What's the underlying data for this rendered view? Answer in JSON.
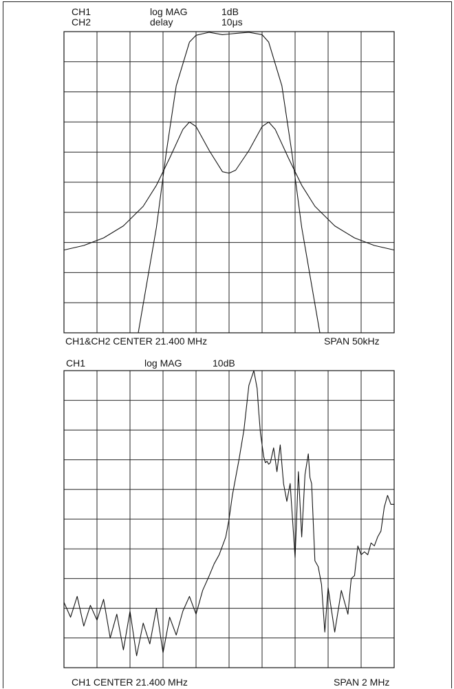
{
  "chart_data": [
    {
      "type": "line",
      "header": {
        "row1": {
          "channel": "CH1",
          "format": "log MAG",
          "scale": "1dB"
        },
        "row2": {
          "channel": "CH2",
          "format": "delay",
          "scale": "10μs"
        }
      },
      "footer": {
        "center": "CH1&CH2 CENTER 21.400 MHz",
        "span": "SPAN 50kHz"
      },
      "grid": true,
      "x_divisions": 10,
      "y_divisions": 10,
      "x_unit": "kHz offset from center",
      "xlim": [
        -25,
        25
      ],
      "series": [
        {
          "id": "ch1_log_mag",
          "unit": "dB below top graticule",
          "ylim": [
            0,
            10
          ],
          "x": [
            -13.75,
            -11,
            -9.5,
            -8,
            -6,
            -5,
            -3,
            -1,
            0,
            1,
            3,
            5,
            6,
            8,
            9.5,
            11,
            13.75
          ],
          "y": [
            10,
            6.5,
            4,
            1.8,
            0.35,
            0.12,
            0.02,
            0.1,
            0.08,
            0.06,
            0.02,
            0.1,
            0.35,
            1.8,
            4,
            6.5,
            10
          ]
        },
        {
          "id": "ch2_delay",
          "unit": "graticule divisions from top",
          "ylim": [
            0,
            10
          ],
          "x": [
            -25,
            -22,
            -19,
            -16,
            -13,
            -11,
            -9,
            -7,
            -6,
            -5,
            -3,
            -1,
            0,
            1,
            3,
            5,
            6,
            7,
            9,
            11,
            13,
            16,
            19,
            22,
            25
          ],
          "y": [
            7.25,
            7.1,
            6.85,
            6.45,
            5.8,
            5.1,
            4.2,
            3.25,
            3.0,
            3.15,
            3.95,
            4.65,
            4.7,
            4.6,
            3.95,
            3.15,
            3.0,
            3.25,
            4.2,
            5.1,
            5.8,
            6.45,
            6.85,
            7.1,
            7.25
          ]
        }
      ]
    },
    {
      "type": "line",
      "header": {
        "channel": "CH1",
        "format": "log MAG",
        "scale": "10dB"
      },
      "footer": {
        "center": "CH1 CENTER 21.400 MHz",
        "span": "SPAN 2 MHz"
      },
      "grid": true,
      "x_divisions": 10,
      "y_divisions": 10,
      "x_unit": "MHz offset from center",
      "xlim": [
        -1,
        1
      ],
      "series": [
        {
          "id": "ch1_log_mag_wide",
          "unit": "graticule divisions from top",
          "ylim": [
            0,
            10
          ],
          "x": [
            -1.0,
            -0.96,
            -0.92,
            -0.88,
            -0.84,
            -0.8,
            -0.76,
            -0.72,
            -0.68,
            -0.64,
            -0.6,
            -0.56,
            -0.52,
            -0.48,
            -0.44,
            -0.4,
            -0.36,
            -0.32,
            -0.28,
            -0.24,
            -0.2,
            -0.16,
            -0.12,
            -0.09,
            -0.06,
            -0.04,
            -0.02,
            -0.01,
            0.0,
            0.01,
            0.02,
            0.04,
            0.06,
            0.09,
            0.12,
            0.15,
            0.17,
            0.18,
            0.19,
            0.2,
            0.21,
            0.22,
            0.23,
            0.24,
            0.25,
            0.27,
            0.29,
            0.31,
            0.33,
            0.35,
            0.37,
            0.4,
            0.42,
            0.44,
            0.46,
            0.48,
            0.49,
            0.5,
            0.52,
            0.54,
            0.56,
            0.58,
            0.6,
            0.64,
            0.68,
            0.72,
            0.74,
            0.76,
            0.78,
            0.8,
            0.82,
            0.84,
            0.86,
            0.88,
            0.9,
            0.92,
            0.94,
            0.96,
            0.98,
            1.0
          ],
          "y": [
            7.8,
            8.3,
            7.6,
            8.6,
            7.9,
            8.4,
            7.7,
            9.0,
            8.2,
            9.4,
            8.1,
            9.6,
            8.5,
            9.2,
            8.0,
            9.5,
            8.3,
            8.9,
            8.1,
            7.6,
            8.2,
            7.4,
            6.9,
            6.5,
            6.2,
            5.9,
            5.6,
            5.3,
            5.0,
            4.6,
            4.2,
            3.6,
            3.0,
            2.0,
            0.5,
            0.0,
            0.6,
            1.4,
            2.1,
            2.5,
            2.9,
            3.1,
            3.05,
            3.15,
            3.1,
            2.6,
            3.4,
            2.5,
            3.8,
            4.4,
            3.8,
            6.3,
            3.4,
            5.6,
            3.5,
            2.8,
            3.6,
            3.8,
            6.4,
            6.6,
            7.2,
            8.8,
            7.3,
            8.8,
            7.4,
            8.2,
            7.0,
            6.9,
            5.9,
            6.2,
            6.1,
            6.2,
            5.8,
            5.9,
            5.6,
            5.4,
            4.6,
            4.2,
            4.5,
            4.5
          ]
        }
      ]
    }
  ]
}
